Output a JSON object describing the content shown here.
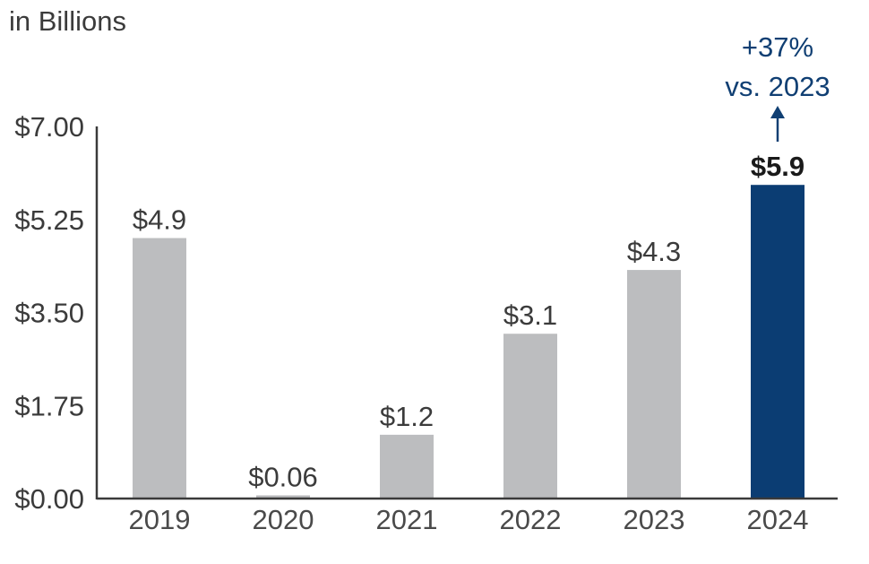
{
  "chart_data": {
    "type": "bar",
    "unit_label": "in Billions",
    "categories": [
      "2019",
      "2020",
      "2021",
      "2022",
      "2023",
      "2024"
    ],
    "values": [
      4.9,
      0.06,
      1.2,
      3.1,
      4.3,
      5.9
    ],
    "value_labels": [
      "$4.9",
      "$0.06",
      "$1.2",
      "$3.1",
      "$4.3",
      "$5.9"
    ],
    "ylim": [
      0,
      7
    ],
    "yticks": [
      0,
      1.75,
      3.5,
      5.25,
      7
    ],
    "ytick_labels": [
      "$0.00",
      "$1.75",
      "$3.50",
      "$5.25",
      "$7.00"
    ],
    "highlight_index": 5,
    "colors": {
      "bar": "#bcbdbf",
      "highlight": "#0b3d73",
      "axis": "#3a3a3a",
      "annotation": "#103f73"
    },
    "annotation": {
      "line1": "+37%",
      "line2": "vs. 2023"
    },
    "legend": null,
    "grid": false
  }
}
